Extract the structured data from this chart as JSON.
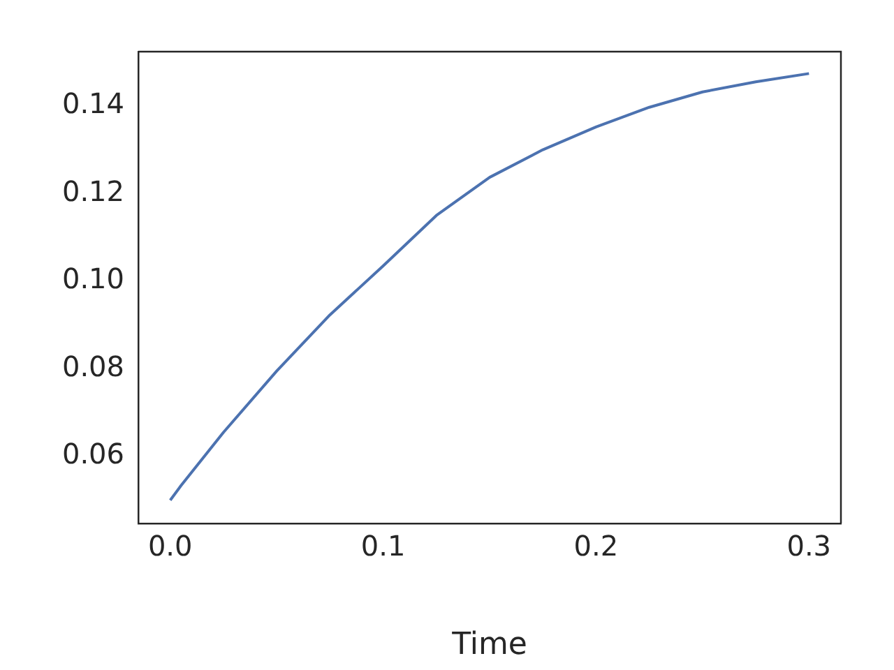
{
  "chart_data": {
    "type": "line",
    "xlabel": "Time",
    "x": [
      0,
      0.005,
      0.025,
      0.05,
      0.075,
      0.1,
      0.125,
      0.15,
      0.175,
      0.2,
      0.225,
      0.25,
      0.275,
      0.3
    ],
    "series": [
      {
        "color": "#4c72b0",
        "values": [
          0.05,
          0.0533,
          0.0655,
          0.0795,
          0.0923,
          0.1035,
          0.115,
          0.1237,
          0.13,
          0.1352,
          0.1397,
          0.1432,
          0.1455,
          0.1474
        ]
      }
    ],
    "xlim": [
      -0.015,
      0.315
    ],
    "xticks": [
      {
        "value": 0,
        "label": "0.0"
      },
      0.1,
      0.2,
      0.3
    ],
    "ylim": [
      0.0447,
      0.1524
    ],
    "yticks": [
      {
        "value": 0.06,
        "label": "0.06"
      },
      {
        "value": 0.08,
        "label": "0.08"
      },
      {
        "value": 0.1,
        "label": "0.10"
      },
      {
        "value": 0.12,
        "label": "0.12"
      },
      {
        "value": 0.14,
        "label": "0.14"
      }
    ],
    "grid": false,
    "legend": false,
    "marker": "none",
    "line_style": "solid"
  }
}
